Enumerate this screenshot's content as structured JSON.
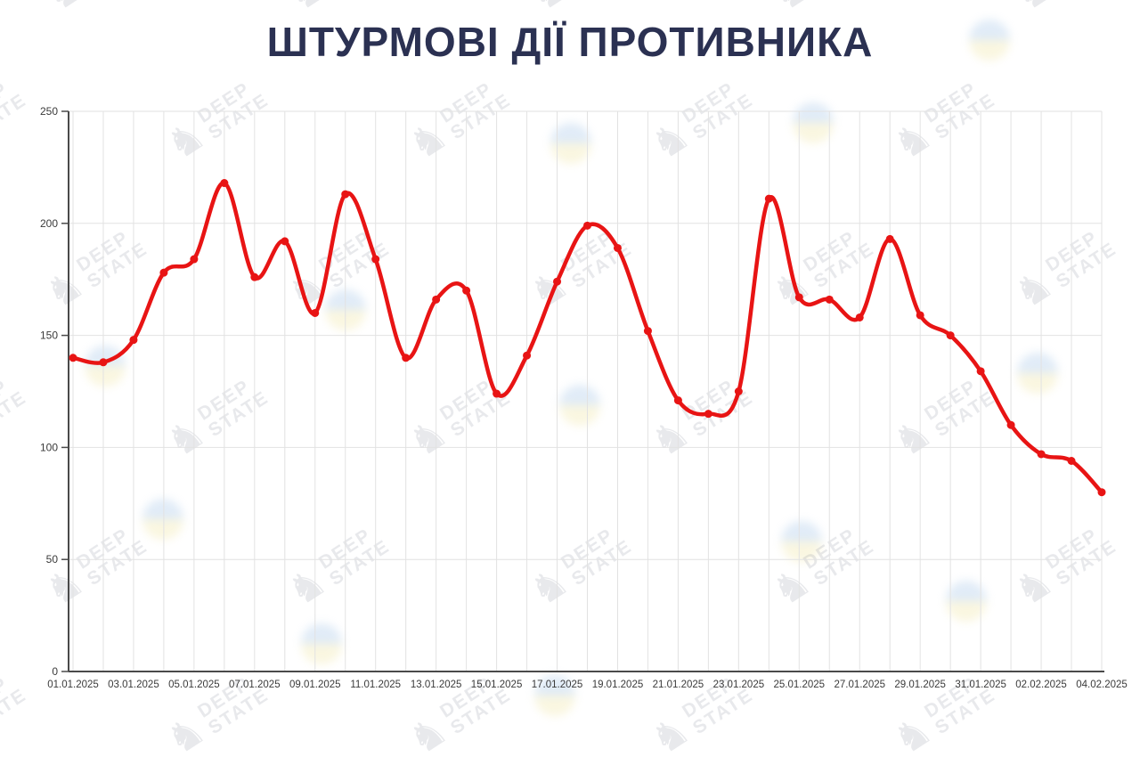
{
  "title": {
    "text": "ШТУРМОВІ ДІЇ ПРОТИВНИКА",
    "color_hex": "#2b3152"
  },
  "watermark": {
    "line1": "DEEP",
    "line2": "STATE",
    "icon": "chess-knight-icon"
  },
  "chart_data": {
    "type": "line",
    "title": "ШТУРМОВІ ДІЇ ПРОТИВНИКА",
    "x": [
      "01.01.2025",
      "02.01.2025",
      "03.01.2025",
      "04.01.2025",
      "05.01.2025",
      "06.01.2025",
      "07.01.2025",
      "08.01.2025",
      "09.01.2025",
      "10.01.2025",
      "11.01.2025",
      "12.01.2025",
      "13.01.2025",
      "14.01.2025",
      "15.01.2025",
      "16.01.2025",
      "17.01.2025",
      "18.01.2025",
      "19.01.2025",
      "20.01.2025",
      "21.01.2025",
      "22.01.2025",
      "23.01.2025",
      "24.01.2025",
      "25.01.2025",
      "26.01.2025",
      "27.01.2025",
      "28.01.2025",
      "29.01.2025",
      "30.01.2025",
      "31.01.2025",
      "01.02.2025",
      "02.02.2025",
      "03.02.2025",
      "04.02.2025"
    ],
    "values": [
      140,
      138,
      148,
      178,
      184,
      218,
      176,
      192,
      160,
      213,
      184,
      140,
      166,
      170,
      124,
      141,
      174,
      199,
      189,
      152,
      121,
      115,
      125,
      211,
      167,
      166,
      158,
      193,
      159,
      150,
      134,
      110,
      97,
      94,
      80
    ],
    "x_tick_labels": [
      "01.01.2025",
      "03.01.2025",
      "05.01.2025",
      "07.01.2025",
      "09.01.2025",
      "11.01.2025",
      "13.01.2025",
      "15.01.2025",
      "17.01.2025",
      "19.01.2025",
      "21.01.2025",
      "23.01.2025",
      "25.01.2025",
      "27.01.2025",
      "29.01.2025",
      "31.01.2025",
      "02.02.2025",
      "04.02.2025"
    ],
    "y_ticks": [
      0,
      50,
      100,
      150,
      200,
      250
    ],
    "ylim": [
      0,
      250
    ],
    "grid": true,
    "legend_position": "none",
    "line_color": "#e81414",
    "point_color": "#e81414",
    "grid_color": "#e2e2e2",
    "axis_color": "#4a4a4a",
    "tick_label_color": "#3a3a3a"
  }
}
